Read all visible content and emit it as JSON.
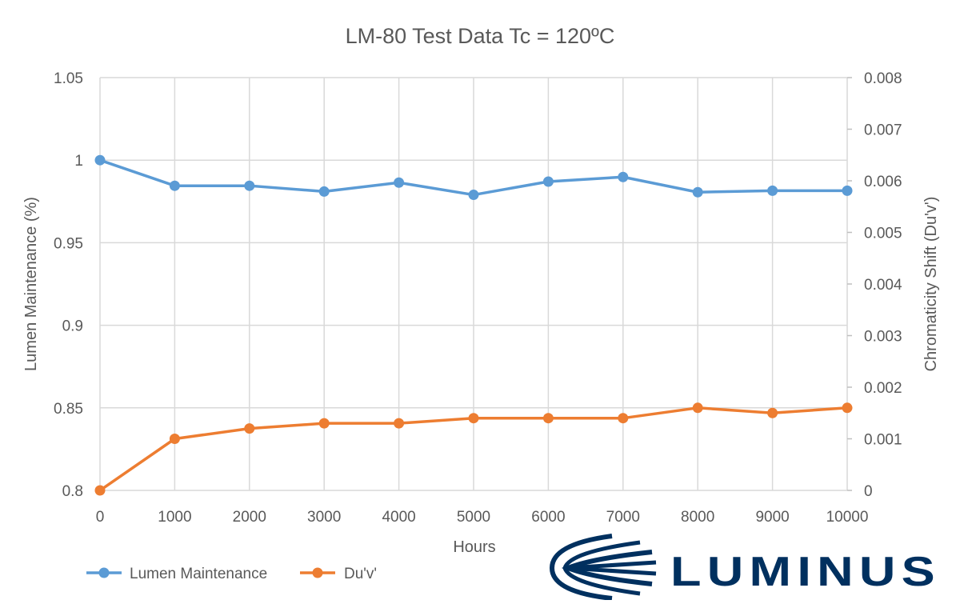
{
  "chart_data": {
    "type": "line",
    "title": "LM-80 Test Data Tc = 120ºC",
    "xlabel": "Hours",
    "ylabel": "Lumen Maintenance (%)",
    "y2label": "Chromaticity Shift (Du'v')",
    "x": [
      0,
      1000,
      2000,
      3000,
      4000,
      5000,
      6000,
      7000,
      8000,
      9000,
      10000
    ],
    "xlim": [
      0,
      10000
    ],
    "ylim": [
      0.8,
      1.05
    ],
    "y2lim": [
      0,
      0.008
    ],
    "yticks": [
      "0.8",
      "0.85",
      "0.9",
      "0.95",
      "1",
      "1.05"
    ],
    "y2ticks": [
      "0",
      "0.001",
      "0.002",
      "0.003",
      "0.004",
      "0.005",
      "0.006",
      "0.007",
      "0.008"
    ],
    "grid": true,
    "legend_position": "bottom-left",
    "series": [
      {
        "name": "Lumen Maintenance",
        "axis": "left",
        "color": "#5b9bd5",
        "values": [
          1.0,
          0.9845,
          0.9845,
          0.981,
          0.9864,
          0.979,
          0.987,
          0.9898,
          0.9806,
          0.9815,
          0.9815
        ]
      },
      {
        "name": "Du'v'",
        "axis": "right",
        "color": "#ed7d31",
        "values": [
          0,
          0.001,
          0.0012,
          0.0013,
          0.0013,
          0.0014,
          0.0014,
          0.0014,
          0.0016,
          0.0015,
          0.0016
        ]
      }
    ]
  },
  "logo": {
    "text": "LUMINUS",
    "color": "#00305f"
  }
}
